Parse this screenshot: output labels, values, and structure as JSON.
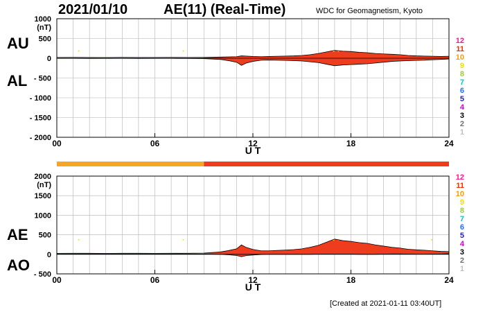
{
  "header": {
    "date": "2021/01/10",
    "index_title": "AE(11) (Real-Time)",
    "source": "WDC for Geomagnetism, Kyoto"
  },
  "footer": "[Created at 2021-01-11 03:40UT]",
  "colors": {
    "orange": "#f5a623",
    "red": "#f03c1e",
    "yellow": "#f3e24a",
    "line": "#000000",
    "grid": "#b0b0b0"
  },
  "station_key": [
    {
      "label": "12",
      "color": "#ff1493"
    },
    {
      "label": "11",
      "color": "#ff2a00"
    },
    {
      "label": "10",
      "color": "#ff9a00"
    },
    {
      "label": "9",
      "color": "#f0e000"
    },
    {
      "label": "8",
      "color": "#9acd32"
    },
    {
      "label": "7",
      "color": "#00c8c8"
    },
    {
      "label": "6",
      "color": "#1e6fff"
    },
    {
      "label": "5",
      "color": "#2020c0"
    },
    {
      "label": "4",
      "color": "#d000d0"
    },
    {
      "label": "3",
      "color": "#000000"
    },
    {
      "label": "2",
      "color": "#707070"
    },
    {
      "label": "1",
      "color": "#c0c0c0"
    }
  ],
  "chart_data": [
    {
      "type": "area",
      "name": "AU/AL panel",
      "panel_labels": [
        "AU",
        "AL"
      ],
      "xlabel": "U T",
      "xlim": [
        0,
        24
      ],
      "xticks": [
        0,
        6,
        12,
        18,
        24
      ],
      "xtick_labels": [
        "00",
        "06",
        "12",
        "18",
        "24"
      ],
      "ylim": [
        -2000,
        1000
      ],
      "yticks": [
        1000,
        500,
        0,
        -500,
        -1000,
        -1500,
        -2000
      ],
      "ytick_labels": [
        "1000",
        "500",
        "0",
        "- 500",
        "- 1000",
        "- 1500",
        "- 2000"
      ],
      "yunit": "(nT)",
      "grid": true,
      "x": [
        0,
        1,
        2,
        3,
        4,
        5,
        6,
        7,
        8,
        9,
        10,
        10.5,
        11,
        11.3,
        11.6,
        12,
        12.5,
        13,
        13.5,
        14,
        14.5,
        15,
        15.5,
        16,
        16.5,
        17,
        17.5,
        18,
        18.5,
        19,
        19.5,
        20,
        20.5,
        21,
        21.5,
        22,
        22.5,
        23,
        23.5,
        24
      ],
      "series": [
        {
          "name": "AU",
          "values": [
            20,
            22,
            20,
            18,
            22,
            20,
            20,
            22,
            20,
            22,
            30,
            35,
            40,
            60,
            55,
            45,
            40,
            45,
            50,
            55,
            60,
            70,
            90,
            120,
            160,
            200,
            180,
            170,
            150,
            140,
            120,
            110,
            100,
            90,
            70,
            60,
            55,
            50,
            45,
            50
          ]
        },
        {
          "name": "AL",
          "values": [
            -5,
            -5,
            -6,
            -5,
            -5,
            -6,
            -5,
            -5,
            -6,
            -10,
            -30,
            -60,
            -100,
            -180,
            -120,
            -80,
            -50,
            -45,
            -50,
            -55,
            -60,
            -70,
            -90,
            -110,
            -150,
            -190,
            -170,
            -160,
            -150,
            -140,
            -120,
            -100,
            -80,
            -70,
            -60,
            -55,
            -50,
            -40,
            -30,
            -20
          ]
        }
      ],
      "station_count_bar": [
        {
          "x_start": 0,
          "x_end": 9,
          "stations": 10
        },
        {
          "x_start": 9,
          "x_end": 24,
          "stations": 11
        }
      ]
    },
    {
      "type": "area",
      "name": "AE/AO panel",
      "panel_labels": [
        "AE",
        "AO"
      ],
      "xlabel": "U T",
      "xlim": [
        0,
        24
      ],
      "xticks": [
        0,
        6,
        12,
        18,
        24
      ],
      "xtick_labels": [
        "00",
        "06",
        "12",
        "18",
        "24"
      ],
      "ylim": [
        -500,
        2000
      ],
      "yticks": [
        2000,
        1500,
        1000,
        500,
        0,
        -500
      ],
      "ytick_labels": [
        "2000",
        "1500",
        "1000",
        "500",
        "0",
        "- 500"
      ],
      "yunit": "(nT)",
      "grid": true,
      "x": [
        0,
        1,
        2,
        3,
        4,
        5,
        6,
        7,
        8,
        9,
        10,
        10.5,
        11,
        11.3,
        11.6,
        12,
        12.5,
        13,
        13.5,
        14,
        14.5,
        15,
        15.5,
        16,
        16.5,
        17,
        17.5,
        18,
        18.5,
        19,
        19.5,
        20,
        20.5,
        21,
        21.5,
        22,
        22.5,
        23,
        23.5,
        24
      ],
      "series": [
        {
          "name": "AE",
          "values": [
            25,
            27,
            26,
            23,
            27,
            26,
            25,
            27,
            26,
            32,
            60,
            95,
            140,
            240,
            175,
            125,
            90,
            90,
            100,
            110,
            120,
            140,
            180,
            230,
            310,
            390,
            350,
            330,
            300,
            280,
            240,
            210,
            180,
            160,
            130,
            115,
            105,
            90,
            75,
            70
          ]
        },
        {
          "name": "AO",
          "values": [
            8,
            9,
            7,
            7,
            9,
            7,
            8,
            9,
            7,
            6,
            0,
            -12,
            -30,
            -60,
            -32,
            -18,
            -5,
            0,
            0,
            0,
            0,
            0,
            0,
            5,
            5,
            5,
            5,
            5,
            0,
            0,
            0,
            5,
            10,
            10,
            5,
            3,
            3,
            5,
            8,
            15
          ]
        }
      ],
      "station_count_bar": [
        {
          "x_start": 0,
          "x_end": 9,
          "stations": 10
        },
        {
          "x_start": 9,
          "x_end": 24,
          "stations": 11
        }
      ]
    }
  ]
}
